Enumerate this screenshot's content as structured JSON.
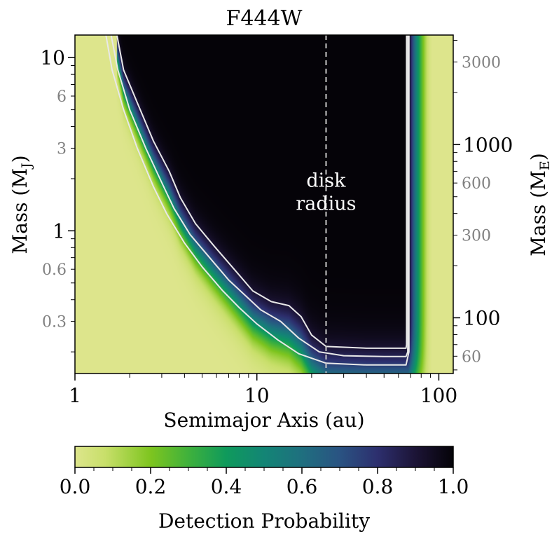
{
  "chart_data": {
    "type": "heatmap",
    "title": "F444W",
    "xlabel": "Semimajor Axis (au)",
    "ylabel_left": "Mass (M",
    "ylabel_left_sub": "J",
    "ylabel_left_close": ")",
    "ylabel_right": "Mass (M",
    "ylabel_right_sub": "E",
    "ylabel_right_close": ")",
    "x_scale": "log",
    "y_scale": "log",
    "xlim": [
      1,
      120
    ],
    "ylim_mj": [
      0.15,
      13.5
    ],
    "x_ticks": [
      {
        "value": 1,
        "label": "1"
      },
      {
        "value": 10,
        "label": "10"
      },
      {
        "value": 100,
        "label": "100"
      }
    ],
    "y_left_major_ticks": [
      {
        "value": 1,
        "label": "1"
      },
      {
        "value": 10,
        "label": "10"
      }
    ],
    "y_left_minor_labeled": [
      {
        "value": 0.3,
        "label": "0.3"
      },
      {
        "value": 0.6,
        "label": "0.6"
      },
      {
        "value": 3,
        "label": "3"
      },
      {
        "value": 6,
        "label": "6"
      }
    ],
    "mj_to_me": 317.8,
    "y_right_major_ticks": [
      {
        "value": 100,
        "label": "100"
      },
      {
        "value": 1000,
        "label": "1000"
      }
    ],
    "y_right_minor_labeled": [
      {
        "value": 60,
        "label": "60"
      },
      {
        "value": 300,
        "label": "300"
      },
      {
        "value": 600,
        "label": "600"
      },
      {
        "value": 3000,
        "label": "3000"
      }
    ],
    "annotation": {
      "line1": "disk",
      "line2": "radius",
      "disk_radius_au": 24
    },
    "inner_edge_au": {
      "near_zero": 1.0,
      "high_probability": 1.5
    },
    "outer_edge_au": {
      "high_probability": 68,
      "near_zero": 92
    },
    "contours": [
      {
        "level": 0.5,
        "points": [
          [
            1.48,
            13.5
          ],
          [
            1.6,
            8.5
          ],
          [
            1.85,
            5.0
          ],
          [
            2.2,
            3.0
          ],
          [
            2.7,
            1.8
          ],
          [
            3.2,
            1.25
          ],
          [
            4.0,
            0.85
          ],
          [
            5.0,
            0.62
          ],
          [
            6.5,
            0.45
          ],
          [
            8.0,
            0.36
          ],
          [
            10.0,
            0.29
          ],
          [
            13.0,
            0.235
          ],
          [
            17.0,
            0.195
          ],
          [
            24.0,
            0.172
          ],
          [
            40.0,
            0.168
          ],
          [
            66.0,
            0.168
          ],
          [
            68.5,
            0.2
          ],
          [
            68.5,
            13.5
          ]
        ]
      },
      {
        "level": 0.68,
        "points": [
          [
            1.58,
            13.5
          ],
          [
            1.72,
            8.5
          ],
          [
            2.0,
            5.0
          ],
          [
            2.45,
            3.0
          ],
          [
            3.0,
            1.9
          ],
          [
            3.5,
            1.35
          ],
          [
            4.3,
            0.95
          ],
          [
            5.5,
            0.7
          ],
          [
            7.0,
            0.52
          ],
          [
            8.5,
            0.43
          ],
          [
            10.5,
            0.35
          ],
          [
            13.5,
            0.3
          ],
          [
            17.0,
            0.24
          ],
          [
            22.0,
            0.2
          ],
          [
            30.0,
            0.19
          ],
          [
            50.0,
            0.188
          ],
          [
            66.0,
            0.188
          ],
          [
            67.5,
            0.2
          ],
          [
            67.5,
            13.5
          ]
        ]
      },
      {
        "level": 0.9,
        "points": [
          [
            1.7,
            13.5
          ],
          [
            1.85,
            8.5
          ],
          [
            2.2,
            5.5
          ],
          [
            2.7,
            3.3
          ],
          [
            3.3,
            2.2
          ],
          [
            3.8,
            1.55
          ],
          [
            4.6,
            1.1
          ],
          [
            5.8,
            0.82
          ],
          [
            7.5,
            0.6
          ],
          [
            9.5,
            0.45
          ],
          [
            12.0,
            0.39
          ],
          [
            15.0,
            0.37
          ],
          [
            17.5,
            0.32
          ],
          [
            20.0,
            0.25
          ],
          [
            24.0,
            0.215
          ],
          [
            40.0,
            0.21
          ],
          [
            66.0,
            0.21
          ],
          [
            66.5,
            0.22
          ],
          [
            66.5,
            13.5
          ]
        ]
      }
    ],
    "colorbar": {
      "label": "Detection Probability",
      "ticks": [
        {
          "value": 0.0,
          "label": "0.0"
        },
        {
          "value": 0.2,
          "label": "0.2"
        },
        {
          "value": 0.4,
          "label": "0.4"
        },
        {
          "value": 0.6,
          "label": "0.6"
        },
        {
          "value": 0.8,
          "label": "0.8"
        },
        {
          "value": 1.0,
          "label": "1.0"
        }
      ],
      "range": [
        0,
        1
      ],
      "colormap": "viridis_r-like",
      "stops": [
        {
          "v": 0.0,
          "c": "#dde58c"
        },
        {
          "v": 0.08,
          "c": "#c8df6a"
        },
        {
          "v": 0.2,
          "c": "#7ec51f"
        },
        {
          "v": 0.3,
          "c": "#3fb13c"
        },
        {
          "v": 0.4,
          "c": "#0f9a5c"
        },
        {
          "v": 0.5,
          "c": "#138575"
        },
        {
          "v": 0.6,
          "c": "#1f6f7f"
        },
        {
          "v": 0.7,
          "c": "#2a5382"
        },
        {
          "v": 0.8,
          "c": "#2d2f6e"
        },
        {
          "v": 0.9,
          "c": "#1c1436"
        },
        {
          "v": 1.0,
          "c": "#050308"
        }
      ]
    }
  }
}
